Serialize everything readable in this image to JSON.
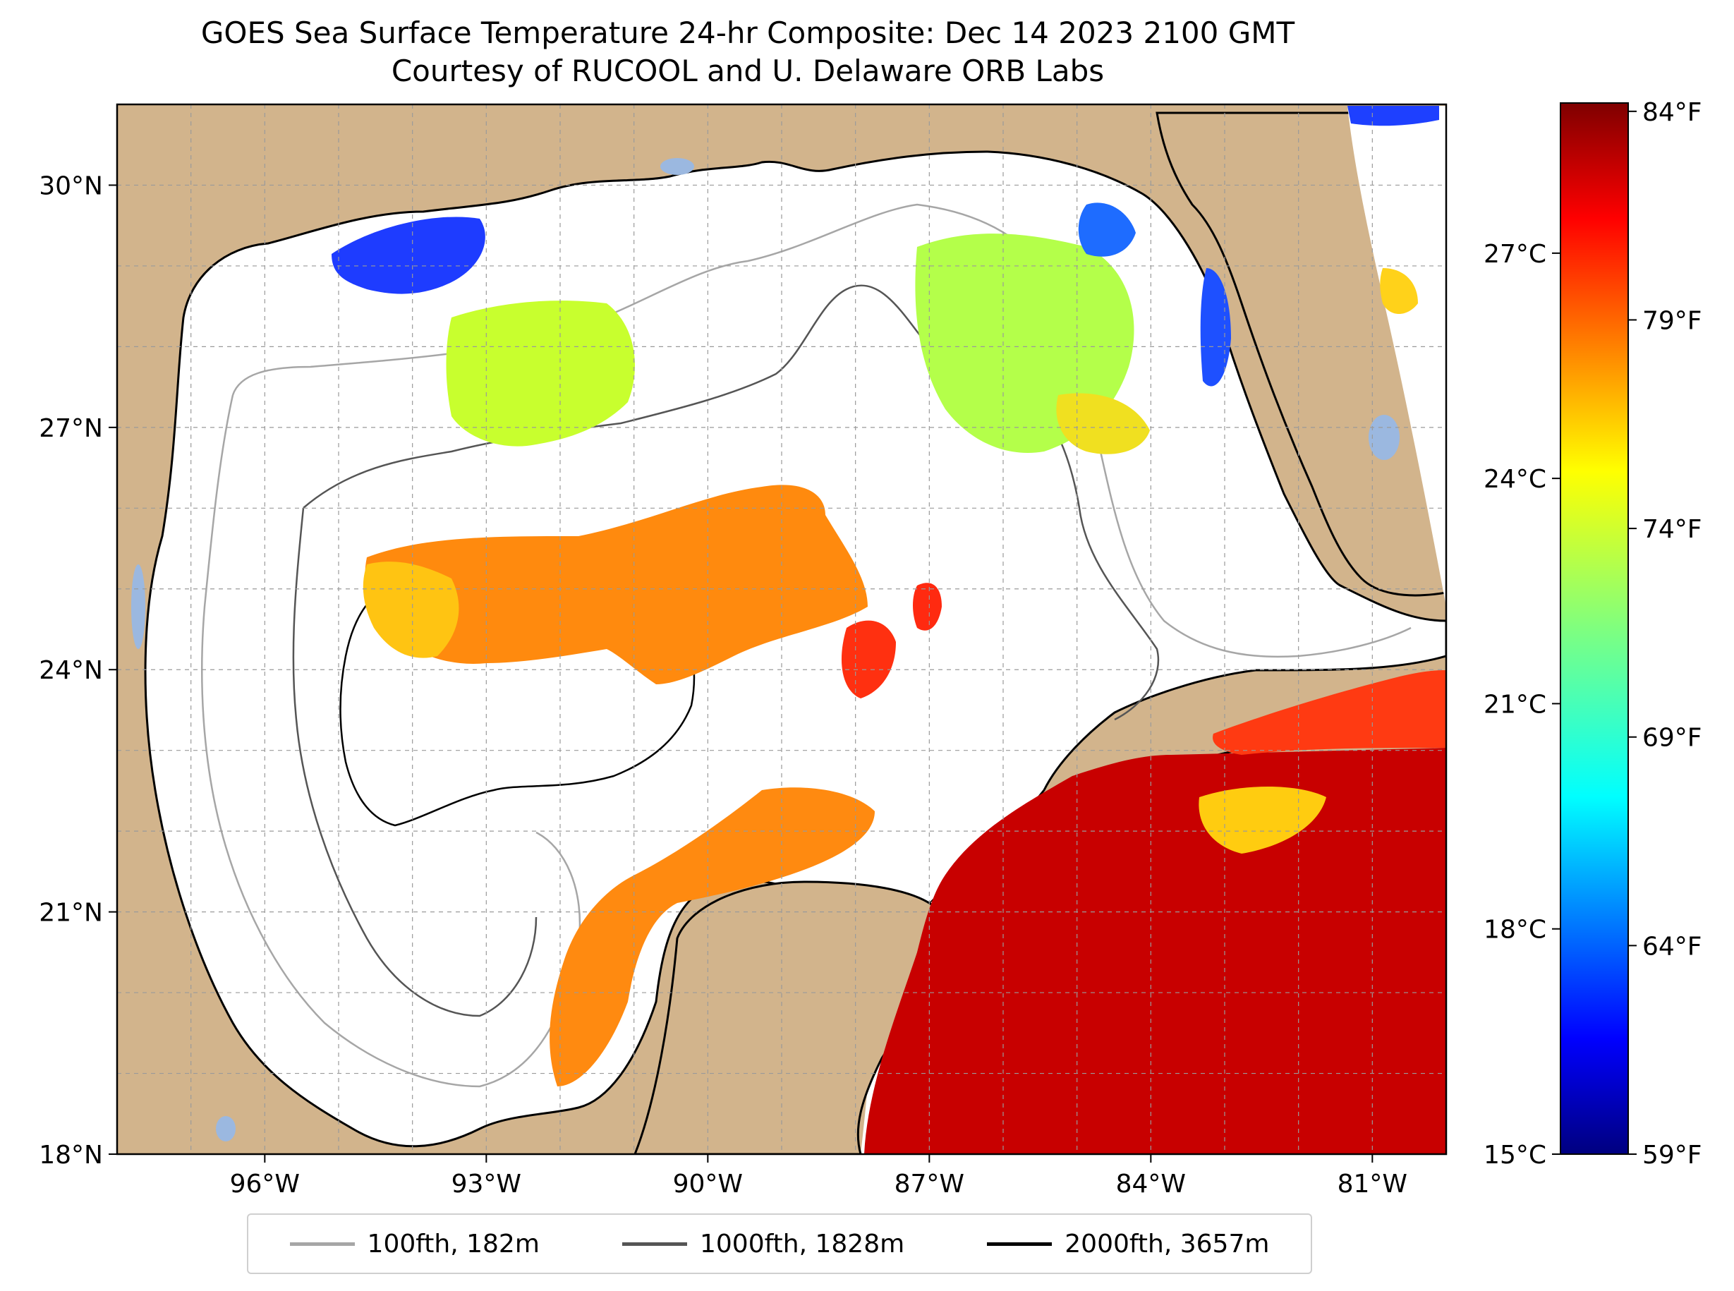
{
  "title": {
    "line1": "GOES Sea Surface Temperature 24-hr Composite: Dec 14 2023 2100 GMT",
    "line2": "Courtesy of RUCOOL and U. Delaware ORB Labs"
  },
  "map": {
    "lon_range": [
      -98,
      -80
    ],
    "lat_range": [
      18,
      31
    ],
    "lat_ticks": [
      {
        "value": 30,
        "label": "30°N"
      },
      {
        "value": 27,
        "label": "27°N"
      },
      {
        "value": 24,
        "label": "24°N"
      },
      {
        "value": 21,
        "label": "21°N"
      },
      {
        "value": 18,
        "label": "18°N"
      }
    ],
    "lon_ticks": [
      {
        "value": -96,
        "label": "96°W"
      },
      {
        "value": -93,
        "label": "93°W"
      },
      {
        "value": -90,
        "label": "90°W"
      },
      {
        "value": -87,
        "label": "87°W"
      },
      {
        "value": -84,
        "label": "84°W"
      },
      {
        "value": -81,
        "label": "81°W"
      }
    ],
    "grid": true,
    "colors": {
      "land": "#d2b48c",
      "ocean_nodata": "#ffffff",
      "lakes": "#9bb8e0",
      "coast": "#000000"
    }
  },
  "colorbar": {
    "colormap": "jet",
    "range_c": [
      15,
      29
    ],
    "celsius_ticks": [
      {
        "value": 27,
        "label": "27°C"
      },
      {
        "value": 24,
        "label": "24°C"
      },
      {
        "value": 21,
        "label": "21°C"
      },
      {
        "value": 18,
        "label": "18°C"
      },
      {
        "value": 15,
        "label": "15°C"
      }
    ],
    "fahrenheit_ticks": [
      {
        "value": 84,
        "label": "84°F"
      },
      {
        "value": 79,
        "label": "79°F"
      },
      {
        "value": 74,
        "label": "74°F"
      },
      {
        "value": 69,
        "label": "69°F"
      },
      {
        "value": 64,
        "label": "64°F"
      },
      {
        "value": 59,
        "label": "59°F"
      }
    ]
  },
  "legend": [
    {
      "label": "100fth, 182m",
      "color": "#a6a6a6"
    },
    {
      "label": "1000fth, 1828m",
      "color": "#555555"
    },
    {
      "label": "2000fth, 3657m",
      "color": "#000000"
    }
  ]
}
